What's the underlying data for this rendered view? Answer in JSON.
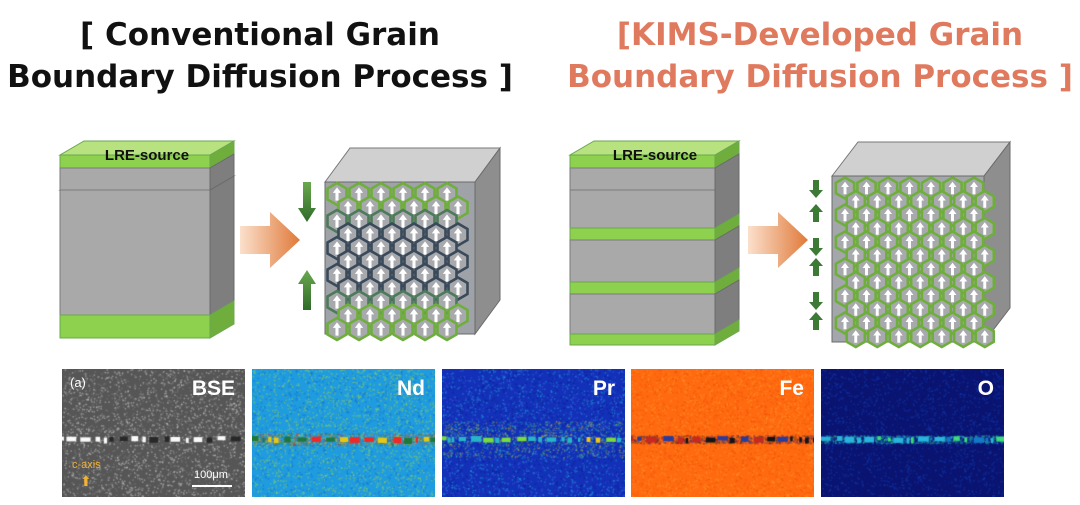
{
  "titles": {
    "conventional": {
      "line1": "[ Conventional Grain",
      "line2": "Boundary Diffusion Process ]"
    },
    "kims": {
      "line1": "[KIMS-Developed Grain",
      "line2": "Boundary Diffusion Process ]"
    }
  },
  "source_label": "LRE-source",
  "colors": {
    "green": "#8ed14f",
    "green_dark": "#5a9a3a",
    "block_gray": "#a9a9a9",
    "block_top": "#d8d8d8",
    "arrow_orange": "#e07a3a",
    "kims_title": "#e07a5f"
  },
  "panels": [
    {
      "label": "BSE",
      "sublabel": "(a)",
      "caxis": "c-axis",
      "scale": "100μm",
      "bg": "#565656"
    },
    {
      "label": "Nd",
      "bg": "#1f9be0"
    },
    {
      "label": "Pr",
      "bg": "#1331b8"
    },
    {
      "label": "Fe",
      "bg": "#ff6a10"
    },
    {
      "label": "O",
      "bg": "#0a1470"
    }
  ]
}
